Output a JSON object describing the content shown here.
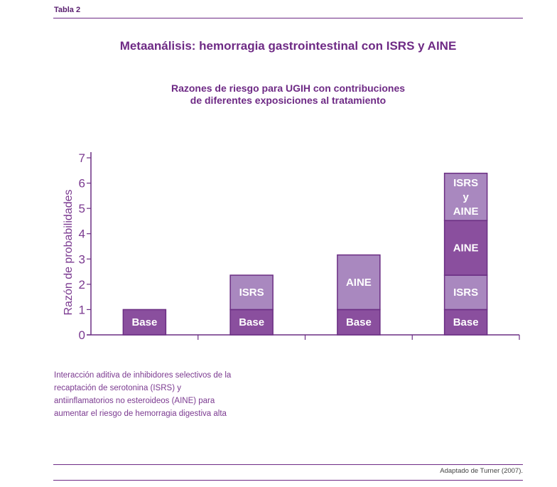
{
  "header": {
    "table_label": "Tabla 2",
    "title": "Metaanálisis: hemorragia gastrointestinal con ISRS y AINE"
  },
  "note": "Interacción aditiva de inhibidores selectivos de la recaptación de serotonina (ISRS) y antiinflamatorios no esteroideos (AINE) para aumentar el riesgo de hemorragia digestiva alta",
  "source": "Adaptado de Turner (2007).",
  "colors": {
    "dark": "#8a4f9e",
    "light": "#a988bf",
    "border": "#6b2e83",
    "text": "#6e2a85"
  },
  "chart_data": {
    "type": "bar",
    "stacked": true,
    "title": "Razones de riesgo para UGIH con contribuciones de diferentes exposiciones al tratamiento",
    "title_lines": [
      "Razones de riesgo para UGIH con contribuciones",
      "de diferentes exposiciones al tratamiento"
    ],
    "ylabel": "Razón de probabilidades",
    "xlabel": "",
    "ylim": [
      0,
      7
    ],
    "yticks": [
      0,
      1,
      2,
      3,
      4,
      5,
      6,
      7
    ],
    "grid": false,
    "bars": [
      {
        "segments": [
          {
            "label": "Base",
            "value": 1.0,
            "shade": "dark"
          }
        ]
      },
      {
        "segments": [
          {
            "label": "Base",
            "value": 1.0,
            "shade": "dark"
          },
          {
            "label": "ISRS",
            "value": 1.36,
            "shade": "light"
          }
        ]
      },
      {
        "segments": [
          {
            "label": "Base",
            "value": 1.0,
            "shade": "dark"
          },
          {
            "label": "AINE",
            "value": 2.16,
            "shade": "light"
          }
        ]
      },
      {
        "segments": [
          {
            "label": "Base",
            "value": 1.0,
            "shade": "dark"
          },
          {
            "label": "ISRS",
            "value": 1.36,
            "shade": "light"
          },
          {
            "label": "AINE",
            "value": 2.16,
            "shade": "dark"
          },
          {
            "label": "ISRS y AINE",
            "value": 1.87,
            "shade": "light",
            "label_lines": [
              "ISRS",
              "y",
              "AINE"
            ]
          }
        ]
      }
    ]
  }
}
